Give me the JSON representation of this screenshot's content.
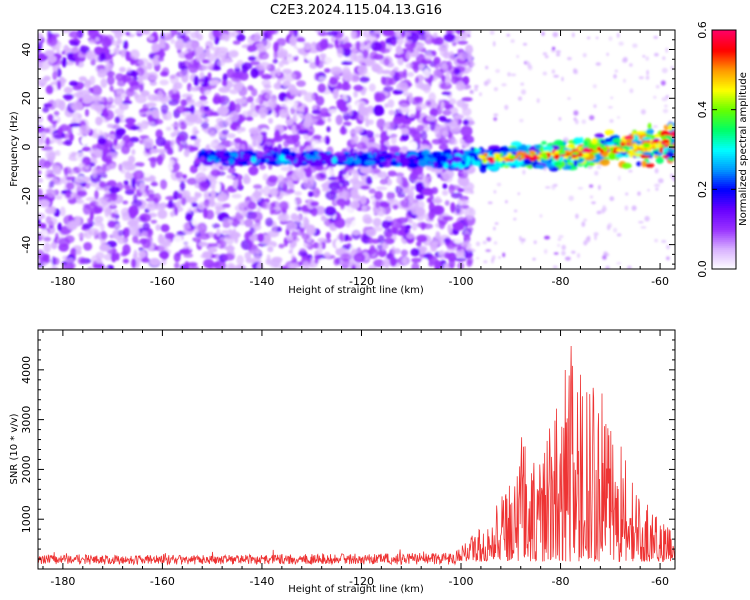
{
  "title": "C2E3.2024.115.04.13.G16",
  "chart_data": [
    {
      "type": "heatmap",
      "xlabel": "Height of straight line (km)",
      "ylabel": "Frequency (Hz)",
      "xlim": [
        -185,
        -57
      ],
      "ylim": [
        -50,
        48
      ],
      "x_ticks": [
        -180,
        -160,
        -140,
        -120,
        -100,
        -80,
        -60
      ],
      "y_ticks": [
        -40,
        -20,
        0,
        20,
        40
      ],
      "colorbar": {
        "label": "Normalized spectral amplitude",
        "range": [
          0.0,
          0.6
        ],
        "ticks": [
          0.0,
          0.2,
          0.4,
          0.6
        ],
        "colors": [
          "#ffffff",
          "#d9b3ff",
          "#9933ff",
          "#6600ff",
          "#0000ff",
          "#0099ff",
          "#00ffff",
          "#00ff66",
          "#66ff00",
          "#ffff00",
          "#ff9900",
          "#ff0000",
          "#ff0066"
        ]
      },
      "ridge": {
        "x": [
          -152,
          -120,
          -100,
          -80,
          -60
        ],
        "y": [
          -4,
          -5,
          -5,
          -3,
          1
        ]
      },
      "noise_edge_x": -100
    },
    {
      "type": "line",
      "xlabel": "Height of straight line (km)",
      "ylabel": "SNR (10 * v/v)",
      "xlim": [
        -185,
        -57
      ],
      "ylim": [
        0,
        4800
      ],
      "x_ticks": [
        -180,
        -160,
        -140,
        -120,
        -100,
        -80,
        -60
      ],
      "y_ticks": [
        1000,
        2000,
        3000,
        4000
      ],
      "color": "#ee3333",
      "envelope": {
        "x": [
          -185,
          -150,
          -120,
          -102,
          -98,
          -95,
          -92,
          -90,
          -88,
          -85,
          -82,
          -80,
          -78,
          -76,
          -74,
          -72,
          -70,
          -68,
          -66,
          -64,
          -62,
          -60,
          -57
        ],
        "y": [
          250,
          250,
          280,
          300,
          500,
          800,
          1300,
          2000,
          2600,
          2200,
          2800,
          3500,
          4600,
          3800,
          4200,
          3700,
          2900,
          2500,
          1700,
          1300,
          1100,
          800,
          600
        ]
      }
    }
  ]
}
